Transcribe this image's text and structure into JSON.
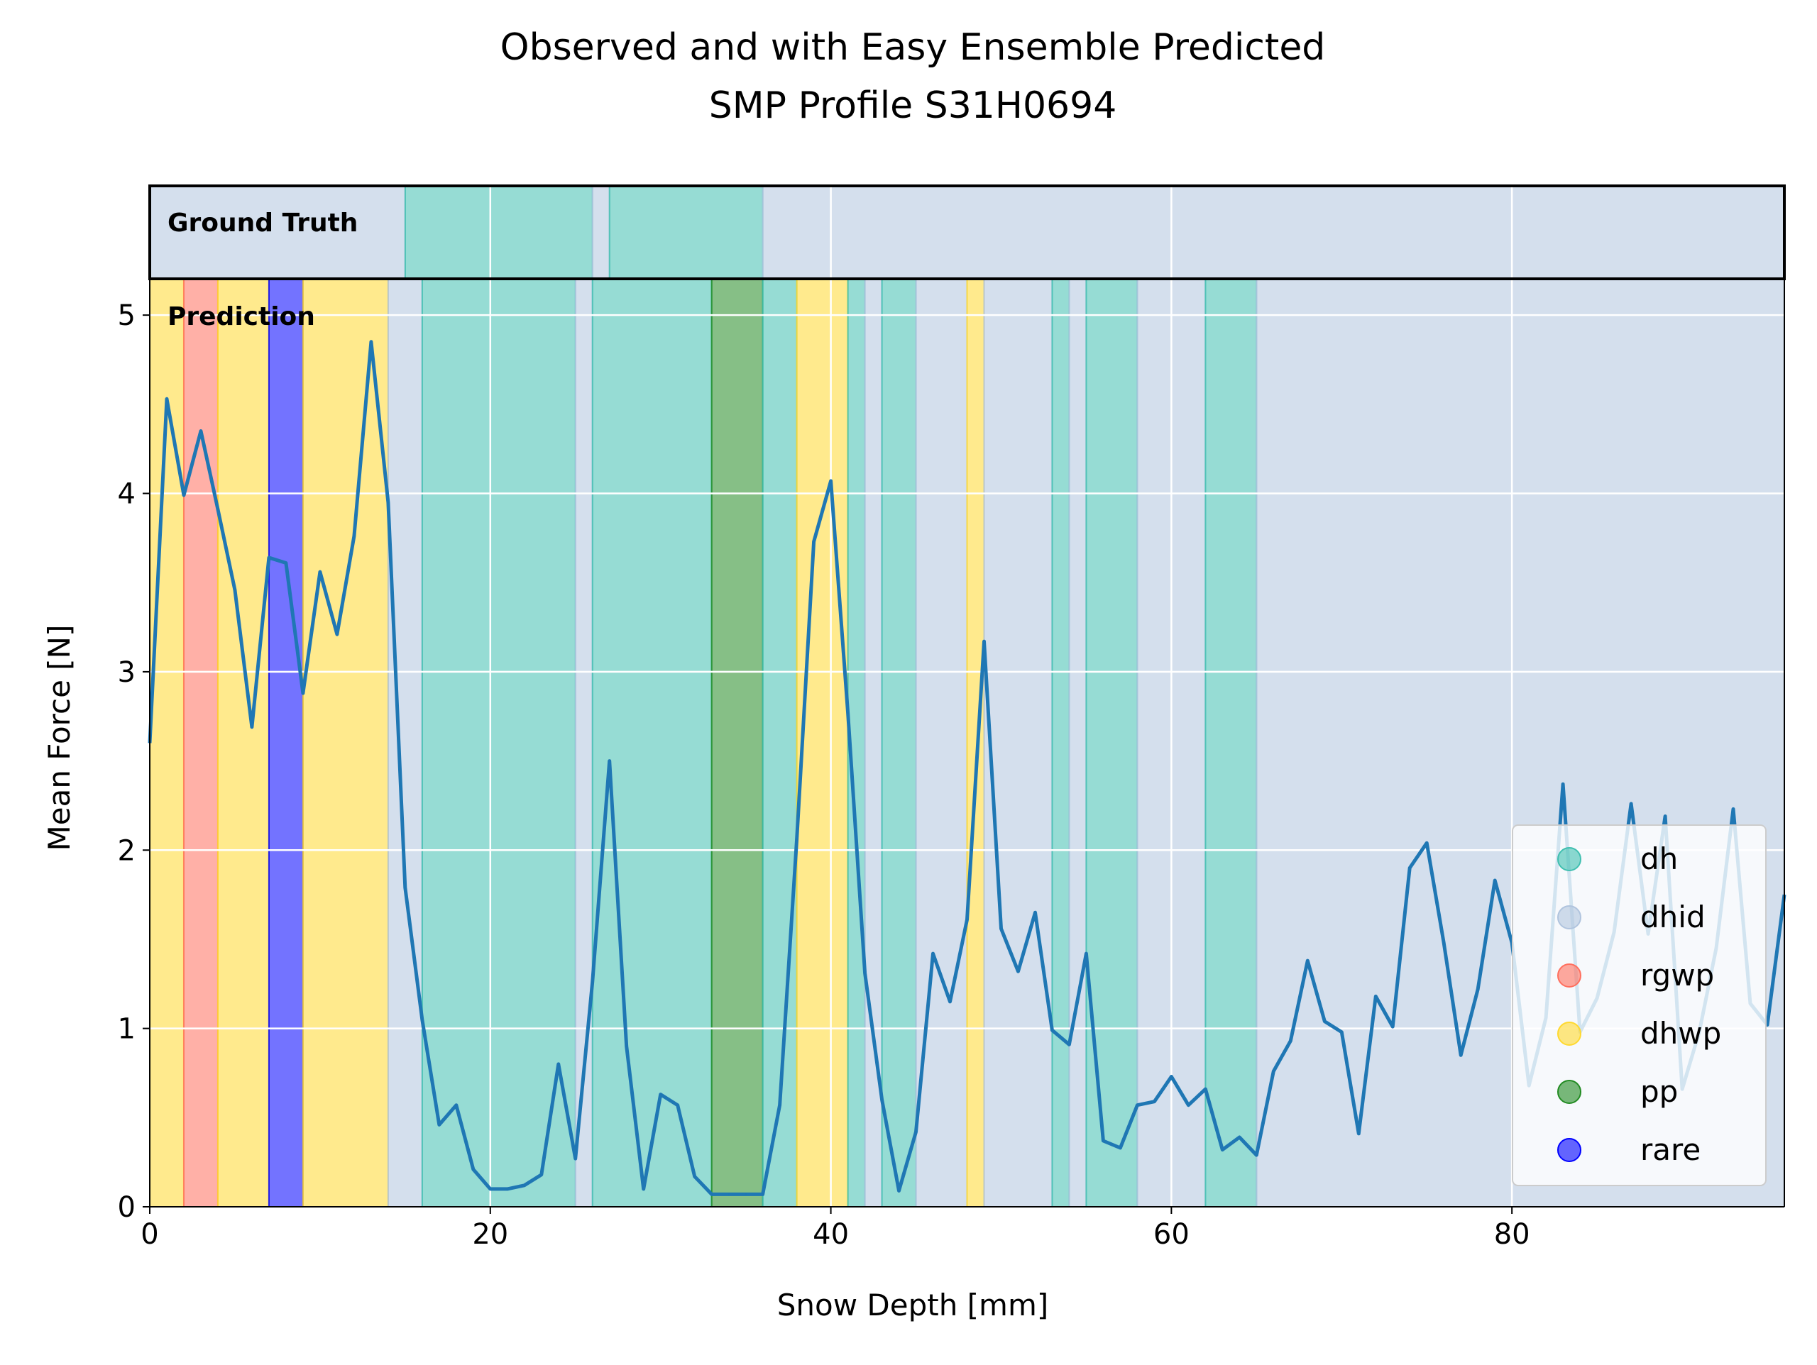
{
  "chart_data": {
    "type": "line",
    "title": "Observed and with Easy Ensemble Predicted",
    "subtitle": "SMP Profile S31H0694",
    "xlabel": "Snow Depth [mm]",
    "ylabel": "Mean Force [N]",
    "xlim": [
      0,
      96
    ],
    "ylim": [
      0,
      5.1
    ],
    "xticks": [
      "0",
      "20",
      "40",
      "60",
      "80"
    ],
    "yticks": [
      "0",
      "1",
      "2",
      "3",
      "4",
      "5"
    ],
    "grid": true,
    "legend_position": "lower-right",
    "strip_labels": {
      "ground_truth": "Ground Truth",
      "prediction": "Prediction"
    },
    "class_colors": {
      "dh": "#40bfb0",
      "dhid": "#b0c4de",
      "rgwp": "#ff6f5e",
      "dhwp": "#ffd92f",
      "pp": "#228b22",
      "rare": "#0000ff"
    },
    "legend": [
      {
        "label": "dh",
        "class": "dh"
      },
      {
        "label": "dhid",
        "class": "dhid"
      },
      {
        "label": "rgwp",
        "class": "rgwp"
      },
      {
        "label": "dhwp",
        "class": "dhwp"
      },
      {
        "label": "pp",
        "class": "pp"
      },
      {
        "label": "rare",
        "class": "rare"
      }
    ],
    "ground_truth_segments": [
      {
        "start": 0,
        "end": 15,
        "class": "dhid"
      },
      {
        "start": 15,
        "end": 26,
        "class": "dh"
      },
      {
        "start": 26,
        "end": 27,
        "class": "dhid"
      },
      {
        "start": 27,
        "end": 36,
        "class": "dh"
      },
      {
        "start": 36,
        "end": 96,
        "class": "dhid"
      }
    ],
    "prediction_segments": [
      {
        "start": 0,
        "end": 2,
        "class": "dhwp"
      },
      {
        "start": 2,
        "end": 4,
        "class": "rgwp"
      },
      {
        "start": 4,
        "end": 7,
        "class": "dhwp"
      },
      {
        "start": 7,
        "end": 9,
        "class": "rare"
      },
      {
        "start": 9,
        "end": 14,
        "class": "dhwp"
      },
      {
        "start": 14,
        "end": 16,
        "class": "dhid"
      },
      {
        "start": 16,
        "end": 25,
        "class": "dh"
      },
      {
        "start": 25,
        "end": 26,
        "class": "dhid"
      },
      {
        "start": 26,
        "end": 33,
        "class": "dh"
      },
      {
        "start": 33,
        "end": 36,
        "class": "pp"
      },
      {
        "start": 36,
        "end": 38,
        "class": "dh"
      },
      {
        "start": 38,
        "end": 41,
        "class": "dhwp"
      },
      {
        "start": 41,
        "end": 42,
        "class": "dh"
      },
      {
        "start": 42,
        "end": 43,
        "class": "dhid"
      },
      {
        "start": 43,
        "end": 45,
        "class": "dh"
      },
      {
        "start": 45,
        "end": 48,
        "class": "dhid"
      },
      {
        "start": 48,
        "end": 49,
        "class": "dhwp"
      },
      {
        "start": 49,
        "end": 53,
        "class": "dhid"
      },
      {
        "start": 53,
        "end": 54,
        "class": "dh"
      },
      {
        "start": 54,
        "end": 55,
        "class": "dhid"
      },
      {
        "start": 55,
        "end": 58,
        "class": "dh"
      },
      {
        "start": 58,
        "end": 62,
        "class": "dhid"
      },
      {
        "start": 62,
        "end": 65,
        "class": "dh"
      },
      {
        "start": 65,
        "end": 96,
        "class": "dhid"
      }
    ],
    "series": [
      {
        "color": "#1f77b4",
        "x": [
          0,
          1,
          2,
          3,
          4,
          5,
          6,
          7,
          8,
          9,
          10,
          11,
          12,
          13,
          14,
          15,
          16,
          17,
          18,
          19,
          20,
          21,
          22,
          23,
          24,
          25,
          26,
          27,
          28,
          29,
          30,
          31,
          32,
          33,
          34,
          35,
          36,
          37,
          38,
          39,
          40,
          41,
          42,
          43,
          44,
          45,
          46,
          47,
          48,
          49,
          50,
          51,
          52,
          53,
          54,
          55,
          56,
          57,
          58,
          59,
          60,
          61,
          62,
          63,
          64,
          65,
          66,
          67,
          68,
          69,
          70,
          71,
          72,
          73,
          74,
          75,
          76,
          77,
          78,
          79,
          80,
          81,
          82,
          83,
          84,
          85,
          86,
          87,
          88,
          89,
          90,
          91,
          92,
          93,
          94,
          95,
          96
        ],
        "y": [
          2.6,
          4.53,
          3.99,
          4.35,
          3.91,
          3.46,
          2.69,
          3.64,
          3.61,
          2.88,
          3.56,
          3.21,
          3.76,
          4.85,
          3.95,
          1.79,
          1.05,
          0.46,
          0.57,
          0.21,
          0.1,
          0.1,
          0.12,
          0.18,
          0.8,
          0.27,
          1.26,
          2.5,
          0.9,
          0.1,
          0.63,
          0.57,
          0.17,
          0.07,
          0.07,
          0.07,
          0.07,
          0.57,
          2.06,
          3.73,
          4.07,
          2.77,
          1.31,
          0.6,
          0.09,
          0.42,
          1.42,
          1.15,
          1.61,
          3.17,
          1.56,
          1.32,
          1.65,
          0.99,
          0.91,
          1.42,
          0.37,
          0.33,
          0.57,
          0.59,
          0.73,
          0.57,
          0.66,
          0.32,
          0.39,
          0.29,
          0.76,
          0.93,
          1.38,
          1.04,
          0.98,
          0.41,
          1.18,
          1.01,
          1.9,
          2.04,
          1.48,
          0.85,
          1.22,
          1.83,
          1.48,
          0.68,
          1.06,
          2.37,
          0.98,
          1.17,
          1.54,
          2.26,
          1.53,
          2.19,
          0.66,
          0.98,
          1.45,
          2.23,
          1.14,
          1.02,
          1.75
        ]
      }
    ]
  }
}
